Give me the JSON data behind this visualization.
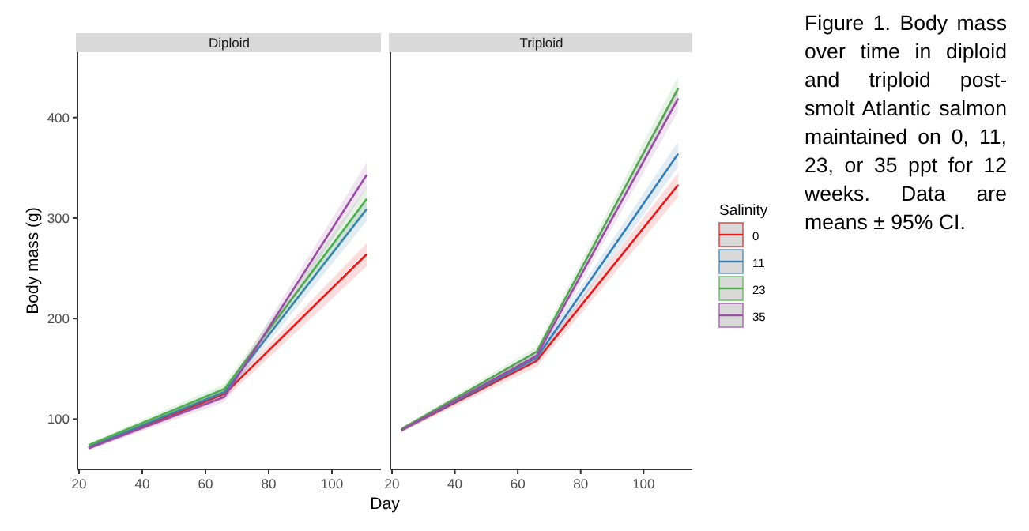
{
  "chart_data": [
    {
      "type": "line",
      "title": "Diploid",
      "xlabel": "Day",
      "ylabel": "Body mass (g)",
      "x": [
        23,
        66,
        111
      ],
      "xlim": [
        19.5,
        115.5
      ],
      "xticks": [
        20,
        40,
        60,
        80,
        100
      ],
      "ylim": [
        50,
        465
      ],
      "yticks": [
        100,
        200,
        300,
        400
      ],
      "grid": false,
      "legend": false,
      "marker": "none",
      "line_style": "solid",
      "series": [
        {
          "color": "#e41a1c",
          "values": [
            71,
            125,
            264
          ],
          "lower": [
            69,
            120,
            252
          ],
          "upper": [
            73,
            129,
            275
          ]
        },
        {
          "color": "#377eb8",
          "values": [
            72,
            127,
            309
          ],
          "lower": [
            70,
            122,
            297
          ],
          "upper": [
            74,
            132,
            321
          ]
        },
        {
          "color": "#4daf4a",
          "values": [
            74,
            130,
            319
          ],
          "lower": [
            72,
            125,
            306
          ],
          "upper": [
            76,
            135,
            331
          ]
        },
        {
          "color": "#984ea3",
          "values": [
            71,
            122,
            343
          ],
          "lower": [
            69,
            117,
            330
          ],
          "upper": [
            73,
            127,
            355
          ]
        }
      ]
    },
    {
      "type": "line",
      "title": "Triploid",
      "x": [
        23,
        66,
        111
      ],
      "xlim": [
        19.5,
        115.5
      ],
      "xticks": [
        20,
        40,
        60,
        80,
        100
      ],
      "ylim": [
        50,
        465
      ],
      "tick_labels": "x",
      "grid": false,
      "legend": "right",
      "legend_title": "Salinity",
      "marker": "none",
      "line_style": "solid",
      "annotations": [
        "Figure 1. Body mass over time in diploid and triploid post-smolt Atlantic salmon maintained on 0, 11, 23, or 35 ppt for 12 weeks. Data are means ± 95% CI."
      ],
      "series": [
        {
          "name": "0",
          "color": "#e41a1c",
          "values": [
            89,
            158,
            333
          ],
          "lower": [
            87,
            152,
            321
          ],
          "upper": [
            91,
            163,
            345
          ]
        },
        {
          "name": "11",
          "color": "#377eb8",
          "values": [
            89,
            161,
            364
          ],
          "lower": [
            87,
            156,
            351
          ],
          "upper": [
            91,
            166,
            376
          ]
        },
        {
          "name": "23",
          "color": "#4daf4a",
          "values": [
            90,
            167,
            429
          ],
          "lower": [
            88,
            161,
            417
          ],
          "upper": [
            92,
            172,
            441
          ]
        },
        {
          "name": "35",
          "color": "#984ea3",
          "values": [
            89,
            163,
            419
          ],
          "lower": [
            87,
            158,
            406
          ],
          "upper": [
            91,
            168,
            431
          ]
        }
      ]
    }
  ]
}
